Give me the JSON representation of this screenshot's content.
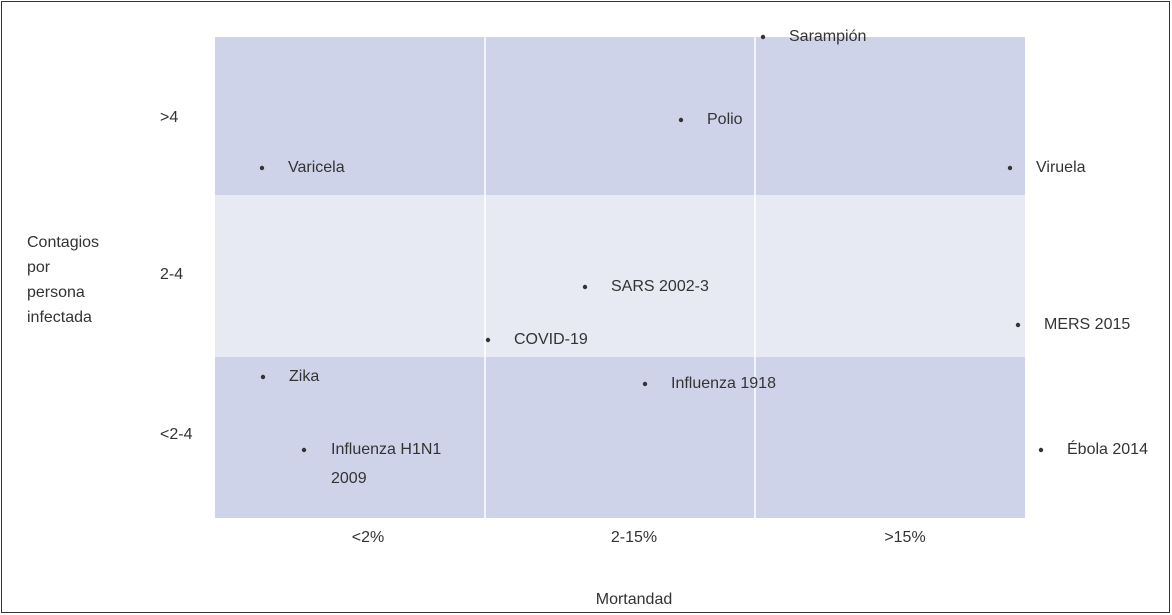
{
  "y_axis": {
    "label_lines": [
      "Contagios",
      "por",
      "persona",
      "infectada"
    ],
    "categories": [
      ">4",
      "2-4",
      "<2-4"
    ]
  },
  "x_axis": {
    "label": "Mortandad",
    "categories": [
      "<2%",
      "2-15%",
      ">15%"
    ]
  },
  "items": [
    {
      "label": "Sarampión"
    },
    {
      "label": "Polio"
    },
    {
      "label": "Varicela"
    },
    {
      "label": "Viruela"
    },
    {
      "label": "SARS 2002-3"
    },
    {
      "label": "COVID-19"
    },
    {
      "label": "MERS 2015"
    },
    {
      "label": "Zika"
    },
    {
      "label": "Influenza 1918"
    },
    {
      "label_lines": [
        "Influenza H1N1",
        "2009"
      ]
    },
    {
      "label": "Ébola 2014"
    }
  ]
}
